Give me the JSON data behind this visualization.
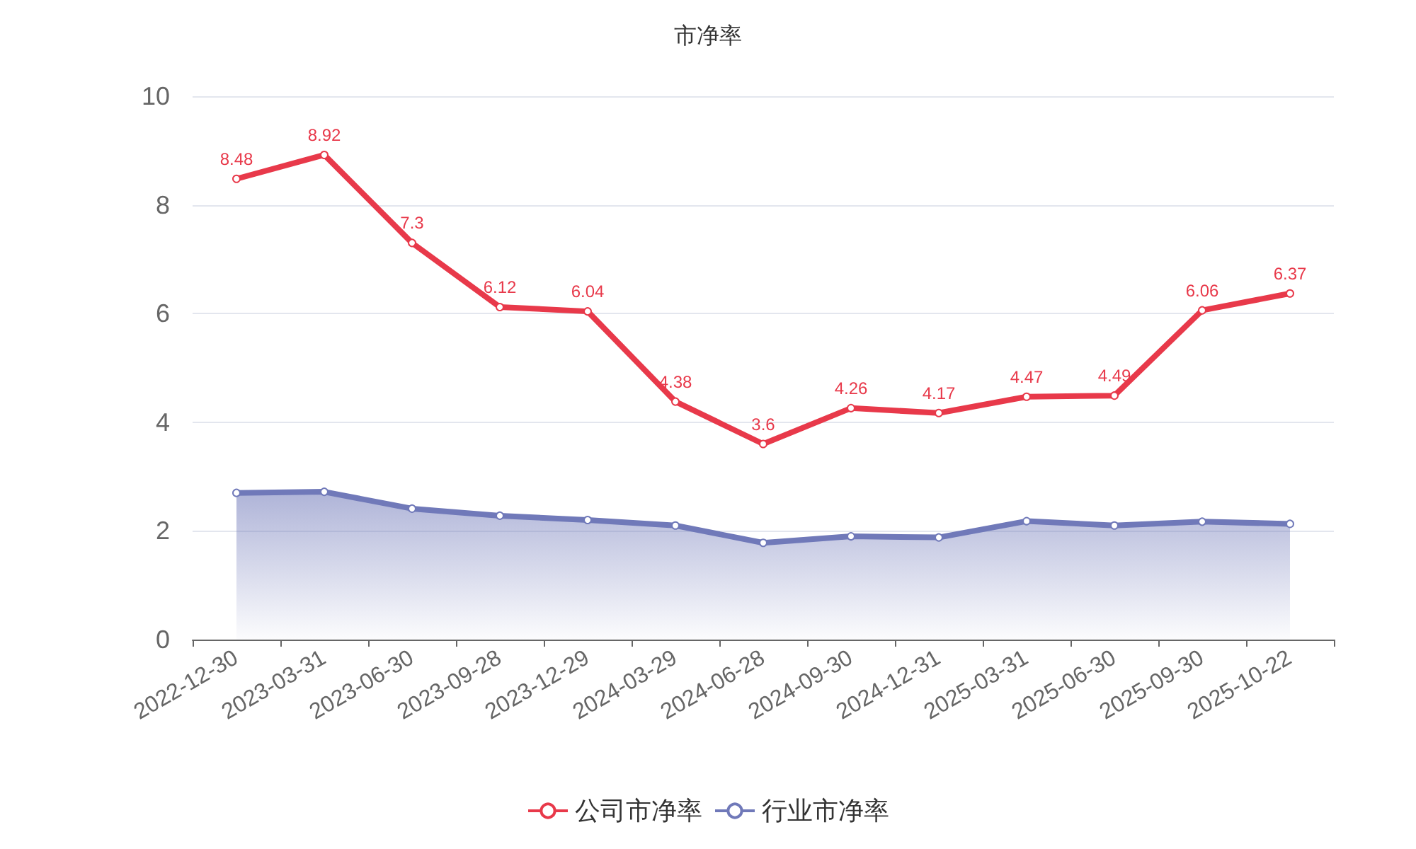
{
  "chart_data": {
    "type": "line",
    "title": "市净率",
    "categories": [
      "2022-12-30",
      "2023-03-31",
      "2023-06-30",
      "2023-09-28",
      "2023-12-29",
      "2024-03-29",
      "2024-06-28",
      "2024-09-30",
      "2024-12-31",
      "2025-03-31",
      "2025-06-30",
      "2025-09-30",
      "2025-10-22"
    ],
    "series": [
      {
        "name": "公司市净率",
        "color": "#e8394a",
        "values": [
          8.48,
          8.92,
          7.3,
          6.12,
          6.04,
          4.38,
          3.6,
          4.26,
          4.17,
          4.47,
          4.49,
          6.06,
          6.37
        ],
        "data_labels": true
      },
      {
        "name": "行业市净率",
        "type": "area",
        "color": "#7079b9",
        "values": [
          2.7,
          2.72,
          2.41,
          2.28,
          2.2,
          2.1,
          1.78,
          1.9,
          1.88,
          2.18,
          2.1,
          2.17,
          2.13
        ]
      }
    ],
    "ylim": [
      0,
      10
    ],
    "yticks": [
      0,
      2,
      4,
      6,
      8,
      10
    ],
    "grid": "y",
    "legend": "bottom",
    "marker": "circle",
    "line_style": "solid"
  }
}
